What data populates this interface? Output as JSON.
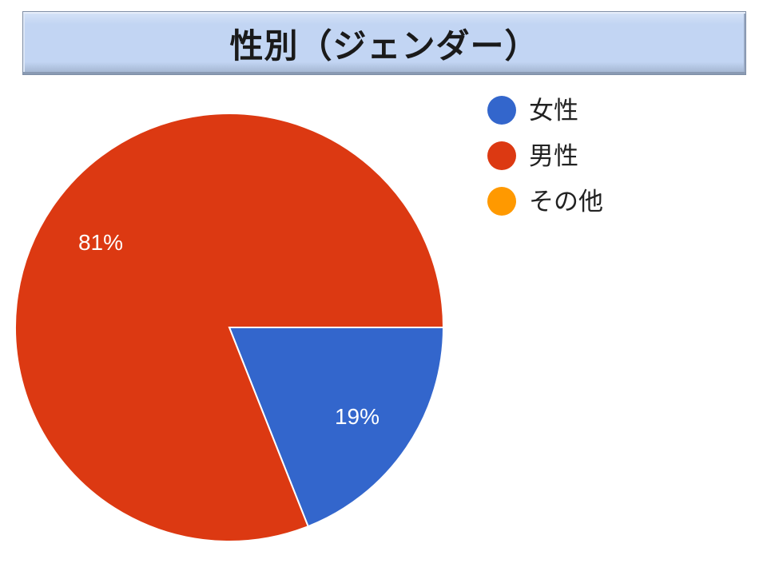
{
  "chart_data": {
    "type": "pie",
    "title": "性別（ジェンダー）",
    "categories": [
      "女性",
      "男性",
      "その他"
    ],
    "values": [
      19,
      81,
      0
    ],
    "data_labels": [
      "19%",
      "81%",
      ""
    ],
    "colors": [
      "#3366cc",
      "#dc3912",
      "#ff9900"
    ],
    "legend": "right",
    "start_angle": "3 o'clock, clockwise"
  }
}
